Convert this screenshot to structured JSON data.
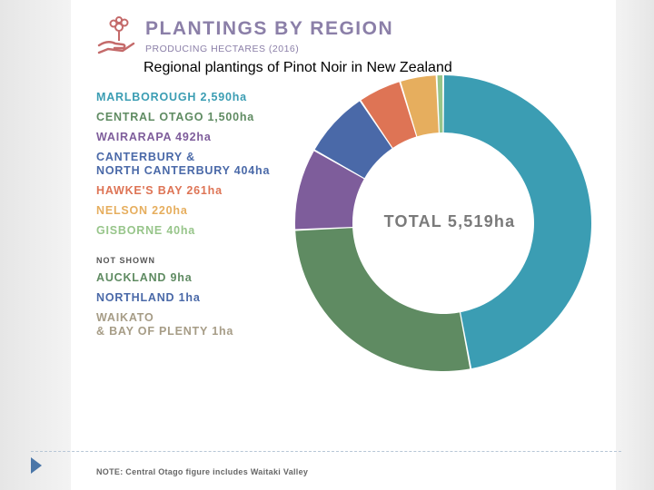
{
  "caption": "Regional plantings of Pinot Noir in New Zealand",
  "note": "NOTE: Central Otago figure includes Waitaki Valley",
  "chart_data": {
    "type": "pie",
    "title": "PLANTINGS BY REGION",
    "subtitle": "PRODUCING HECTARES (2016)",
    "total_label": "TOTAL 5,519ha",
    "total": 5519,
    "unit": "ha",
    "slices": [
      {
        "name": "MARLBOROUGH",
        "value": 2590,
        "value_label": "2,590ha",
        "color": "#3b9db3"
      },
      {
        "name": "CENTRAL OTAGO",
        "value": 1500,
        "value_label": "1,500ha",
        "color": "#5f8b62"
      },
      {
        "name": "WAIRARAPA",
        "value": 492,
        "value_label": "492ha",
        "color": "#7e5d9b"
      },
      {
        "name": "CANTERBURY &\nNORTH CANTERBURY",
        "value": 404,
        "value_label": "404ha",
        "color": "#4a69a8"
      },
      {
        "name": "HAWKE'S BAY",
        "value": 261,
        "value_label": "261ha",
        "color": "#de7455"
      },
      {
        "name": "NELSON",
        "value": 220,
        "value_label": "220ha",
        "color": "#e6ae5e"
      },
      {
        "name": "GISBORNE",
        "value": 40,
        "value_label": "40ha",
        "color": "#97c58a"
      }
    ],
    "not_shown_label": "NOT SHOWN",
    "not_shown": [
      {
        "name": "AUCKLAND",
        "value": 9,
        "value_label": "9ha",
        "color": "#5f8b62"
      },
      {
        "name": "NORTHLAND",
        "value": 1,
        "value_label": "1ha",
        "color": "#4a69a8"
      },
      {
        "name": "WAIKATO\n& BAY OF PLENTY",
        "value": 1,
        "value_label": "1ha",
        "color": "#a69c86"
      }
    ]
  }
}
